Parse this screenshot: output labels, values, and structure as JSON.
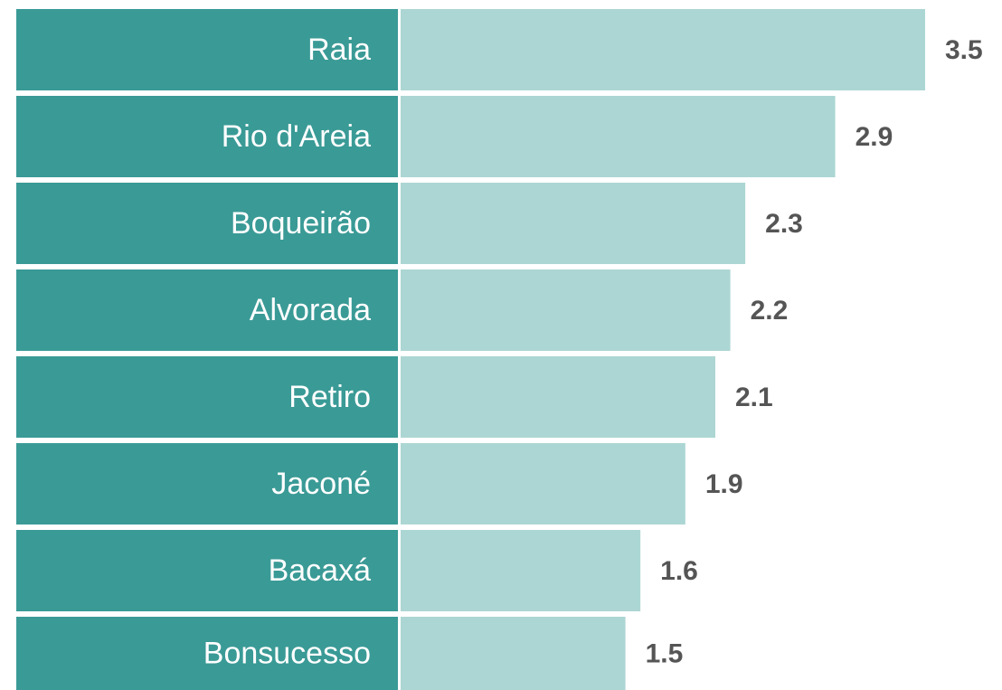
{
  "chart_data": {
    "type": "bar",
    "orientation": "horizontal",
    "categories": [
      "Raia",
      "Rio d'Areia",
      "Boqueirão",
      "Alvorada",
      "Retiro",
      "Jaconé",
      "Bacaxá",
      "Bonsucesso"
    ],
    "values": [
      3.5,
      2.9,
      2.3,
      2.2,
      2.1,
      1.9,
      1.6,
      1.5
    ],
    "color": "#acd6d3",
    "label_color": "#3a9a96"
  }
}
